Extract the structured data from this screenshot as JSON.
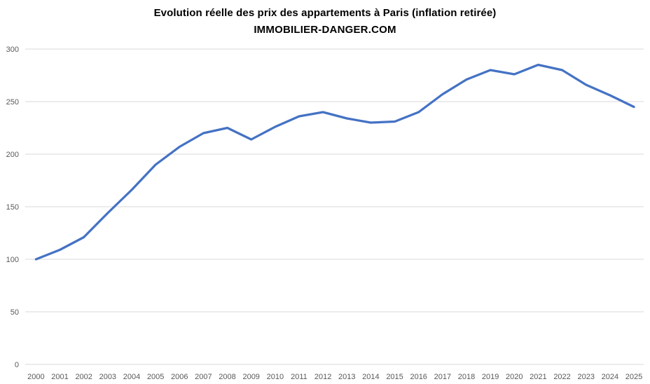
{
  "page": {
    "title": "Evolution réelle des prix des appartements à Paris (inflation retirée)",
    "subtitle": "IMMOBILIER-DANGER.COM"
  },
  "colors": {
    "line": "#4472C4",
    "gridline": "#D9D9D9",
    "tick_label": "#595959",
    "title_text": "#000000",
    "background": "#FFFFFF"
  },
  "chart_data": {
    "type": "line",
    "title": "Evolution réelle des prix des appartements à Paris (inflation retirée)",
    "subtitle": "IMMOBILIER-DANGER.COM",
    "categories": [
      "2000",
      "2001",
      "2002",
      "2003",
      "2004",
      "2005",
      "2006",
      "2007",
      "2008",
      "2009",
      "2010",
      "2011",
      "2012",
      "2013",
      "2014",
      "2015",
      "2016",
      "2017",
      "2018",
      "2019",
      "2020",
      "2021",
      "2022",
      "2023",
      "2024",
      "2025"
    ],
    "values": [
      100,
      109,
      121,
      144,
      166,
      190,
      207,
      220,
      225,
      214,
      226,
      236,
      240,
      234,
      230,
      231,
      240,
      257,
      271,
      280,
      276,
      285,
      280,
      266,
      256,
      245
    ],
    "ylim": [
      0,
      300
    ],
    "yticks": [
      0,
      50,
      100,
      150,
      200,
      250,
      300
    ],
    "grid": "horizontal",
    "legend": "none",
    "line_color": "#4472C4"
  }
}
